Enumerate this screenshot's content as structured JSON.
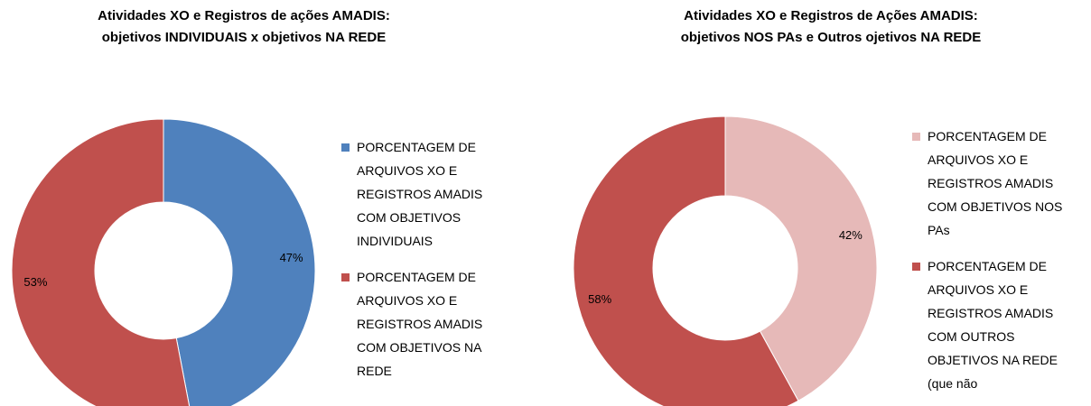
{
  "chart_data": [
    {
      "type": "donut",
      "title": "Atividades XO e Registros de ações AMADIS:\nobjetivos INDIVIDUAIS x objetivos NA REDE",
      "categories": [
        "PORCENTAGEM DE ARQUIVOS XO E REGISTROS AMADIS COM OBJETIVOS INDIVIDUAIS",
        "PORCENTAGEM DE ARQUIVOS XO E REGISTROS AMADIS COM OBJETIVOS NA REDE"
      ],
      "values": [
        47,
        53
      ],
      "value_labels": [
        "47%",
        "53%"
      ],
      "colors": [
        "#4f81bd",
        "#c0504d"
      ],
      "legend": "right"
    },
    {
      "type": "donut",
      "title": "Atividades XO e Registros de Ações AMADIS:\nobjetivos NOS PAs e Outros ojetivos NA REDE",
      "categories": [
        "PORCENTAGEM DE ARQUIVOS XO E REGISTROS AMADIS COM OBJETIVOS NOS PAs",
        "PORCENTAGEM DE ARQUIVOS XO E REGISTROS AMADIS COM OUTROS OBJETIVOS NA REDE (que não"
      ],
      "values": [
        42,
        58
      ],
      "value_labels": [
        "42%",
        "58%"
      ],
      "colors": [
        "#e6b9b8",
        "#c0504d"
      ],
      "legend": "right"
    }
  ]
}
